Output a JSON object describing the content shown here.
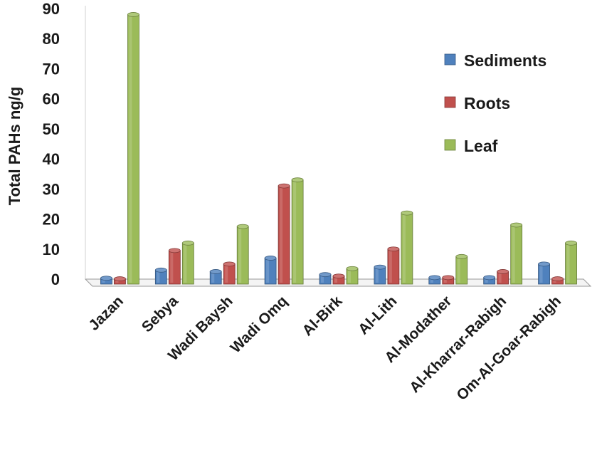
{
  "chart_data": {
    "type": "bar",
    "ylabel": "Total PAHs ng/g",
    "ylim": [
      0,
      90
    ],
    "yticks": [
      "90",
      "80",
      "70",
      "60",
      "50",
      "40",
      "30",
      "20",
      "10",
      "0"
    ],
    "grid": false,
    "legend_position": "right",
    "categories": [
      "Jazan",
      "Sebya",
      "Wadi Baysh",
      "Wadi Omq",
      "Al-Birk",
      "Al-Lith",
      "Al-Modather",
      "Al-Kharrar-Rabigh",
      "Om-Al-Goar-Rabigh"
    ],
    "series": [
      {
        "name": "Sediments",
        "color": "#4f81bd",
        "values": [
          0.3,
          3,
          2.5,
          7,
          1.5,
          4,
          0.5,
          0.5,
          5
        ]
      },
      {
        "name": "Roots",
        "color": "#c0504d",
        "values": [
          0.1,
          9.5,
          5,
          31,
          1,
          10,
          0.5,
          2.5,
          0.1
        ]
      },
      {
        "name": "Leaf",
        "color": "#9bbb59",
        "values": [
          88,
          12,
          17.5,
          33,
          3.5,
          22,
          7.5,
          18,
          12
        ]
      }
    ]
  }
}
